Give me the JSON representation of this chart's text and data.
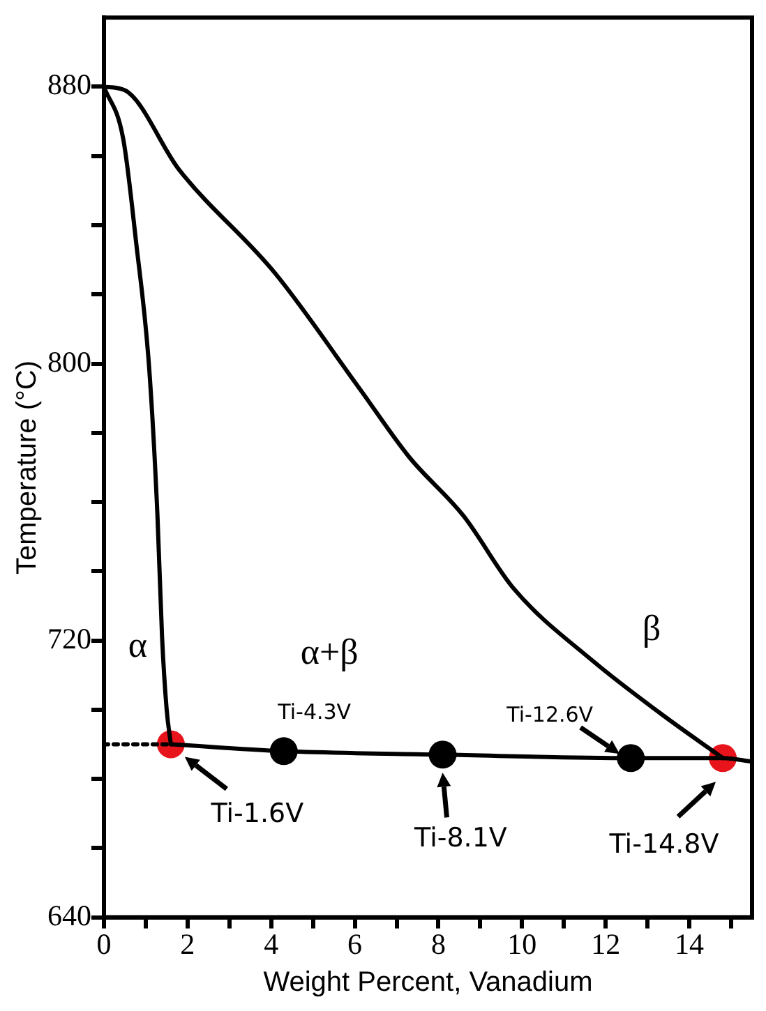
{
  "chart_data": {
    "type": "line",
    "xlabel": "Weight Percent, Vanadium",
    "ylabel": "Temperature (°C)",
    "xlim": [
      0,
      15.5
    ],
    "ylim": [
      640,
      900
    ],
    "xticks": [
      0,
      {
        "value": 1,
        "label": null
      },
      2,
      {
        "value": 3,
        "label": null
      },
      4,
      {
        "value": 5,
        "label": null
      },
      6,
      {
        "value": 7,
        "label": null
      },
      8,
      {
        "value": 9,
        "label": null
      },
      10,
      {
        "value": 11,
        "label": null
      },
      12,
      {
        "value": 13,
        "label": null
      },
      14,
      {
        "value": 15,
        "label": null
      }
    ],
    "yticks": [
      640,
      {
        "value": 660,
        "label": null
      },
      {
        "value": 680,
        "label": null
      },
      {
        "value": 700,
        "label": null
      },
      720,
      {
        "value": 740,
        "label": null
      },
      {
        "value": 760,
        "label": null
      },
      {
        "value": 780,
        "label": null
      },
      800,
      {
        "value": 820,
        "label": null
      },
      {
        "value": 840,
        "label": null
      },
      {
        "value": 860,
        "label": null
      },
      880
    ],
    "marker": "none",
    "line_style": "solid",
    "series": [
      {
        "type": "line",
        "color": "#000000",
        "x": [
          0,
          0.46,
          0.77,
          1.08,
          1.28,
          1.39,
          1.5,
          1.6
        ],
        "values": [
          880,
          865,
          835,
          799,
          756,
          721,
          700,
          690
        ]
      },
      {
        "type": "line",
        "color": "#000000",
        "x": [
          0,
          0.5,
          1.8,
          4.1,
          6.1,
          7.3,
          8.6,
          9.8,
          11.7,
          13.3,
          14.8
        ],
        "values": [
          880,
          879,
          856,
          826,
          793,
          773,
          756,
          735,
          714,
          699,
          686
        ]
      },
      {
        "type": "line",
        "color": "#000000",
        "x": [
          1.6,
          4.3,
          8.1,
          12.6,
          14.8,
          15.5
        ],
        "values": [
          690,
          688,
          687,
          686,
          686,
          685
        ]
      },
      {
        "type": "line",
        "color": "#000000",
        "line_style": "dotted",
        "x": [
          0,
          1.6
        ],
        "values": [
          690,
          690
        ]
      },
      {
        "type": "scatter",
        "marker": "circle",
        "x": [
          1.6,
          4.3,
          8.1,
          12.6,
          14.8
        ],
        "values": [
          690,
          688,
          687,
          686,
          686
        ],
        "colors": [
          "#e8141b",
          "#000000",
          "#000000",
          "#000000",
          "#e8141b"
        ]
      }
    ],
    "annotations": [
      "α",
      "α+β",
      "β",
      {
        "text": "Ti-1.6V",
        "x": 1.6,
        "y": 690
      },
      {
        "text": "Ti-4.3V",
        "x": 4.3,
        "y": 688
      },
      {
        "text": "Ti-8.1V",
        "x": 8.1,
        "y": 687
      },
      {
        "text": "Ti-12.6V",
        "x": 12.6,
        "y": 686
      },
      {
        "text": "Ti-14.8V",
        "x": 14.8,
        "y": 686
      }
    ]
  }
}
